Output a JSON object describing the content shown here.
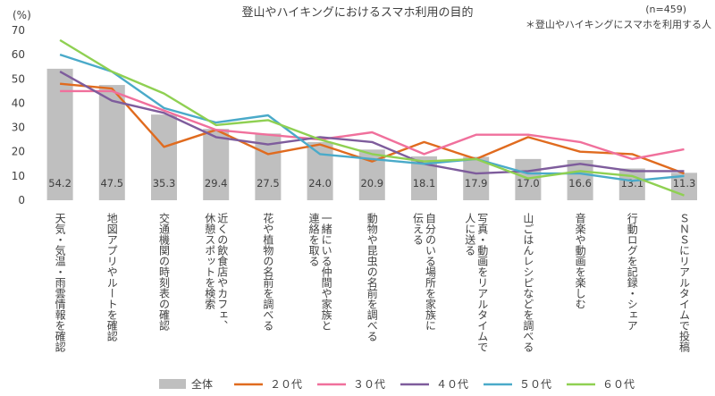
{
  "chart_data": {
    "type": "bar",
    "title": "登山やハイキングにおけるスマホ利用の目的",
    "sample_note": "(n=459)",
    "scope_note": "＊登山やハイキングにスマホを利用する人",
    "ylabel": "(%)",
    "ylim": [
      0,
      70
    ],
    "yticks": [
      "0",
      "10",
      "20",
      "30",
      "40",
      "50",
      "60",
      "70"
    ],
    "grid": false,
    "legend_position": "bottom",
    "categories": [
      "天気・気温・雨雲情報を確認",
      "地図アプリやルートを確認",
      "交通機関の時刻表の確認",
      "近くの飲食店やカフェ、休憩スポットを検索",
      "花や植物の名前を調べる",
      "一緒にいる仲間や家族と連絡を取る",
      "動物や昆虫の名前を調べる",
      "自分のいる場所を家族に伝える",
      "写真・動画をリアルタイムで人に送る",
      "山ごはんレシピなどを調べる",
      "音楽や動画を楽しむ",
      "行動ログを記録・シェア",
      "ＳＮＳにリアルタイムで投稿"
    ],
    "category_lines": [
      [
        "天気・気温・雨雲情報を確認"
      ],
      [
        "地図アプリやルートを確認"
      ],
      [
        "交通機関の時刻表の確認"
      ],
      [
        "近くの飲食店やカフェ、",
        "休憩スポットを検索"
      ],
      [
        "花や植物の名前を調べる"
      ],
      [
        "一緒にいる仲間や家族と",
        "連絡を取る"
      ],
      [
        "動物や昆虫の名前を調べる"
      ],
      [
        "自分のいる場所を家族に",
        "伝える"
      ],
      [
        "写真・動画をリアルタイムで",
        "人に送る"
      ],
      [
        "山ごはんレシピなどを調べる"
      ],
      [
        "音楽や動画を楽しむ"
      ],
      [
        "行動ログを記録・シェア"
      ],
      [
        "ＳＮＳにリアルタイムで投稿"
      ]
    ],
    "bar_series": {
      "name": "全体",
      "color": "#bfbfbf",
      "values": [
        54.2,
        47.5,
        35.3,
        29.4,
        27.5,
        24.0,
        20.9,
        18.1,
        17.9,
        17.0,
        16.6,
        13.1,
        11.3
      ],
      "labels": [
        "54.2",
        "47.5",
        "35.3",
        "29.4",
        "27.5",
        "24.0",
        "20.9",
        "18.1",
        "17.9",
        "17.0",
        "16.6",
        "13.1",
        "11.3"
      ]
    },
    "series": [
      {
        "name": "２０代",
        "color": "#e06b1f",
        "values": [
          48,
          46,
          22,
          29,
          19,
          23,
          16,
          24,
          17,
          26,
          20,
          19,
          11
        ]
      },
      {
        "name": "３０代",
        "color": "#f0709c",
        "values": [
          45,
          45,
          37,
          29,
          27,
          25,
          28,
          19,
          27,
          27,
          24,
          17,
          21
        ]
      },
      {
        "name": "４０代",
        "color": "#7e5c9c",
        "values": [
          53,
          41,
          36,
          26,
          23,
          26,
          24,
          15,
          11,
          12,
          15,
          12,
          12
        ]
      },
      {
        "name": "５０代",
        "color": "#4aaac9",
        "values": [
          60,
          53,
          38,
          32,
          35,
          19,
          17,
          15,
          17,
          11,
          11,
          8,
          10
        ]
      },
      {
        "name": "６０代",
        "color": "#8fd052",
        "values": [
          66,
          53,
          44,
          31,
          33,
          25,
          19,
          16,
          17,
          9,
          12,
          10,
          2
        ]
      }
    ]
  }
}
